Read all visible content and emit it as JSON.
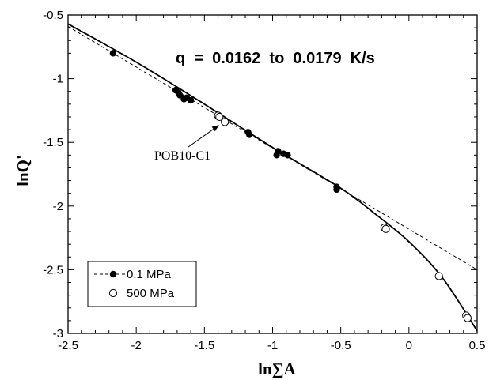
{
  "chart_data": {
    "type": "scatter",
    "title": "",
    "xlabel": "ln∑A",
    "ylabel": "lnQ'",
    "xlim": [
      -2.5,
      0.5
    ],
    "ylim": [
      -3,
      -0.5
    ],
    "xticks": [
      "-2.5",
      "-2",
      "-1.5",
      "-1",
      "-0.5",
      "0",
      "0.5"
    ],
    "yticks": [
      "-0.5",
      "-1",
      "-1.5",
      "-2",
      "-2.5",
      "-3"
    ],
    "grid": false,
    "legend_position": "bottom-left",
    "annotation": "q  =  0.0162  to  0.0179  K/s",
    "callout": {
      "label": "POB10-C1",
      "target": [
        -1.38,
        -1.32
      ]
    },
    "series": [
      {
        "name": "0.1 MPa",
        "marker": "filled-circle",
        "line": "dashed",
        "points": [
          [
            -2.17,
            -0.8
          ],
          [
            -1.71,
            -1.09
          ],
          [
            -1.69,
            -1.11
          ],
          [
            -1.68,
            -1.13
          ],
          [
            -1.65,
            -1.16
          ],
          [
            -1.63,
            -1.15
          ],
          [
            -1.6,
            -1.17
          ],
          [
            -1.18,
            -1.42
          ],
          [
            -1.17,
            -1.44
          ],
          [
            -0.97,
            -1.6
          ],
          [
            -0.96,
            -1.57
          ],
          [
            -0.92,
            -1.59
          ],
          [
            -0.89,
            -1.6
          ],
          [
            -0.53,
            -1.85
          ],
          [
            -0.53,
            -1.87
          ]
        ],
        "fit_line": [
          [
            -2.5,
            -0.59
          ],
          [
            0.5,
            -2.5
          ]
        ]
      },
      {
        "name": "500 MPa",
        "marker": "open-circle",
        "line": "solid",
        "points": [
          [
            -1.4,
            -1.29
          ],
          [
            -1.39,
            -1.3
          ],
          [
            -1.35,
            -1.34
          ],
          [
            -0.18,
            -2.17
          ],
          [
            -0.17,
            -2.18
          ],
          [
            0.22,
            -2.55
          ],
          [
            0.42,
            -2.86
          ],
          [
            0.43,
            -2.88
          ]
        ],
        "fit_curve": [
          [
            -2.5,
            -0.57
          ],
          [
            -2.0,
            -0.87
          ],
          [
            -1.5,
            -1.2
          ],
          [
            -1.0,
            -1.54
          ],
          [
            -0.5,
            -1.86
          ],
          [
            -0.25,
            -2.06
          ],
          [
            0.0,
            -2.28
          ],
          [
            0.25,
            -2.57
          ],
          [
            0.5,
            -2.98
          ]
        ]
      }
    ]
  }
}
